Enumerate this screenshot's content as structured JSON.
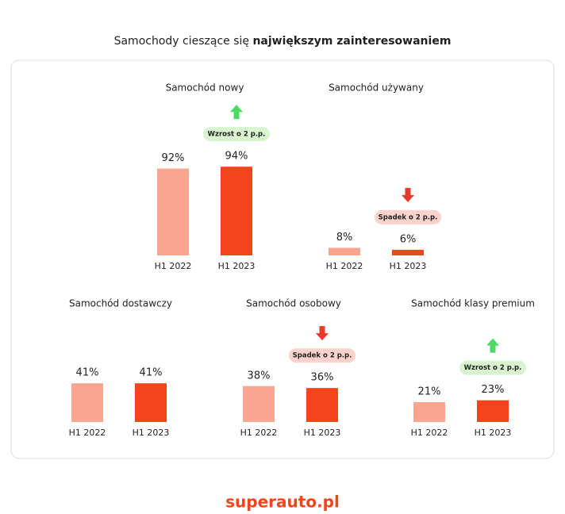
{
  "title": {
    "regular": "Samochody cieszące się",
    "bold": "największym zainteresowaniem"
  },
  "footer": "superauto.pl",
  "chart_data": [
    {
      "type": "bar",
      "title": "Samochód nowy",
      "categories": [
        "H1 2022",
        "H1 2023"
      ],
      "values": [
        92,
        94
      ],
      "value_labels": [
        "92%",
        "94%"
      ],
      "colors": [
        "#f9a58f",
        "#f4441e"
      ],
      "annotation": "Wzrost o 2 p.p.",
      "trend": "up"
    },
    {
      "type": "bar",
      "title": "Samochód używany",
      "categories": [
        "H1 2022",
        "H1 2023"
      ],
      "values": [
        8,
        6
      ],
      "value_labels": [
        "8%",
        "6%"
      ],
      "colors": [
        "#f9a58f",
        "#f4441e"
      ],
      "annotation": "Spadek o 2 p.p.",
      "trend": "down"
    },
    {
      "type": "bar",
      "title": "Samochód dostawczy",
      "categories": [
        "H1 2022",
        "H1 2023"
      ],
      "values": [
        41,
        41
      ],
      "value_labels": [
        "41%",
        "41%"
      ],
      "colors": [
        "#f9a58f",
        "#f4441e"
      ]
    },
    {
      "type": "bar",
      "title": "Samochód osobowy",
      "categories": [
        "H1 2022",
        "H1 2023"
      ],
      "values": [
        38,
        36
      ],
      "value_labels": [
        "38%",
        "36%"
      ],
      "colors": [
        "#f9a58f",
        "#f4441e"
      ],
      "annotation": "Spadek o 2 p.p.",
      "trend": "down"
    },
    {
      "type": "bar",
      "title": "Samochód klasy premium",
      "categories": [
        "H1 2022",
        "H1 2023"
      ],
      "values": [
        21,
        23
      ],
      "value_labels": [
        "21%",
        "23%"
      ],
      "colors": [
        "#f9a58f",
        "#f4441e"
      ],
      "annotation": "Wzrost o 2 p.p.",
      "trend": "up"
    }
  ]
}
